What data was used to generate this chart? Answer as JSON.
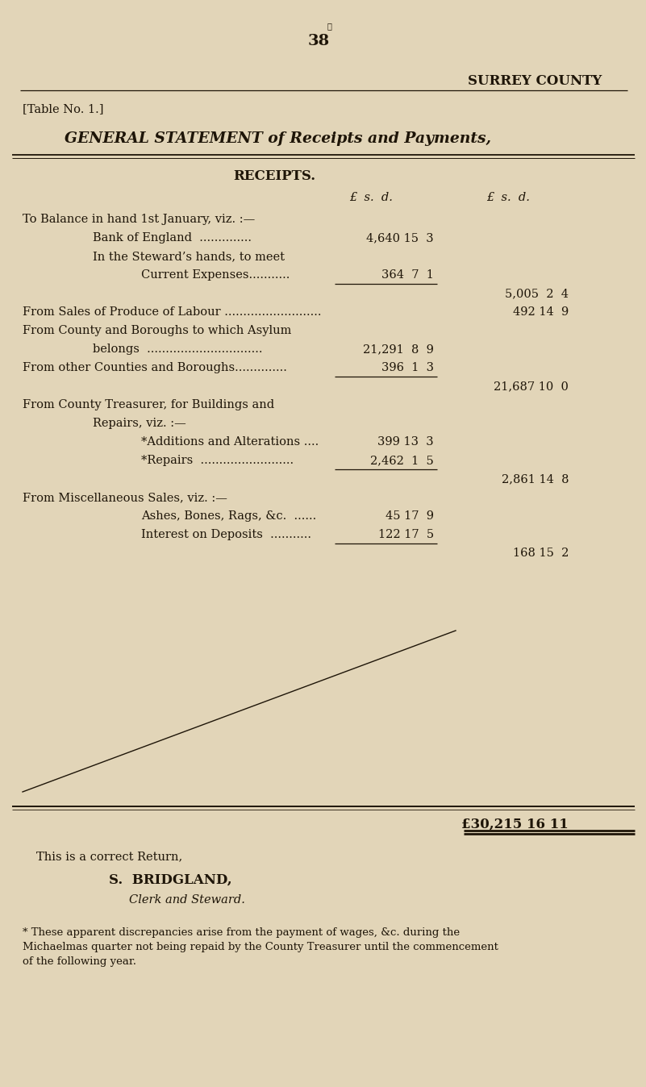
{
  "bg_color": "#e2d5b8",
  "text_color": "#1e1508",
  "page_number": "38",
  "header_right": "SURREY COUNTY",
  "table_label": "[Table No. 1.]",
  "title": "GENERAL STATEMENT of Receipts and Payments,",
  "section_header": "RECEIPTS.",
  "col_header1": "£  s.  d.",
  "col_header2": "£  s.  d.",
  "rows": [
    {
      "indent": 0,
      "text": "To Balance in hand 1st January, viz. :—",
      "col1": "",
      "col2": "",
      "ul1": false
    },
    {
      "indent": 1,
      "text": "Bank of England  ..............",
      "col1": "4,640 15  3",
      "col2": "",
      "ul1": false
    },
    {
      "indent": 1,
      "text": "In the Steward’s hands, to meet",
      "col1": "",
      "col2": "",
      "ul1": false
    },
    {
      "indent": 2,
      "text": "Current Expenses...........",
      "col1": "364  7  1",
      "col2": "",
      "ul1": true
    },
    {
      "indent": 0,
      "text": "",
      "col1": "",
      "col2": "5,005  2  4",
      "ul1": false
    },
    {
      "indent": 0,
      "text": "From Sales of Produce of Labour ..........................",
      "col1": "",
      "col2": "492 14  9",
      "ul1": false
    },
    {
      "indent": 0,
      "text": "From County and Boroughs to which Asylum",
      "col1": "",
      "col2": "",
      "ul1": false
    },
    {
      "indent": 1,
      "text": "belongs  ...............................",
      "col1": "21,291  8  9",
      "col2": "",
      "ul1": false
    },
    {
      "indent": 0,
      "text": "From other Counties and Boroughs..............",
      "col1": "396  1  3",
      "col2": "",
      "ul1": true
    },
    {
      "indent": 0,
      "text": "",
      "col1": "",
      "col2": "21,687 10  0",
      "ul1": false
    },
    {
      "indent": 0,
      "text": "From County Treasurer, for Buildings and",
      "col1": "",
      "col2": "",
      "ul1": false
    },
    {
      "indent": 1,
      "text": "Repairs, viz. :—",
      "col1": "",
      "col2": "",
      "ul1": false
    },
    {
      "indent": 2,
      "text": "*Additions and Alterations ....",
      "col1": "399 13  3",
      "col2": "",
      "ul1": false
    },
    {
      "indent": 2,
      "text": "*Repairs  .........................",
      "col1": "2,462  1  5",
      "col2": "",
      "ul1": true
    },
    {
      "indent": 0,
      "text": "",
      "col1": "",
      "col2": "2,861 14  8",
      "ul1": false
    },
    {
      "indent": 0,
      "text": "From Miscellaneous Sales, viz. :—",
      "col1": "",
      "col2": "",
      "ul1": false
    },
    {
      "indent": 2,
      "text": "Ashes, Bones, Rags, &c.  ......",
      "col1": "45 17  9",
      "col2": "",
      "ul1": false
    },
    {
      "indent": 2,
      "text": "Interest on Deposits  ...........",
      "col1": "122 17  5",
      "col2": "",
      "ul1": true
    },
    {
      "indent": 0,
      "text": "",
      "col1": "",
      "col2": "168 15  2",
      "ul1": false
    }
  ],
  "total_line": "£30,215 16 11",
  "sig1": "This is a correct Return,",
  "sig2": "S.  BRIDGLAND,",
  "sig3": "Clerk and Steward.",
  "footnote1": "* These apparent discrepancies arise from the payment of wages, &c. during the",
  "footnote2": "Michaelmas quarter not being repaid by the County Treasurer until the commencement",
  "footnote3": "of the following year."
}
